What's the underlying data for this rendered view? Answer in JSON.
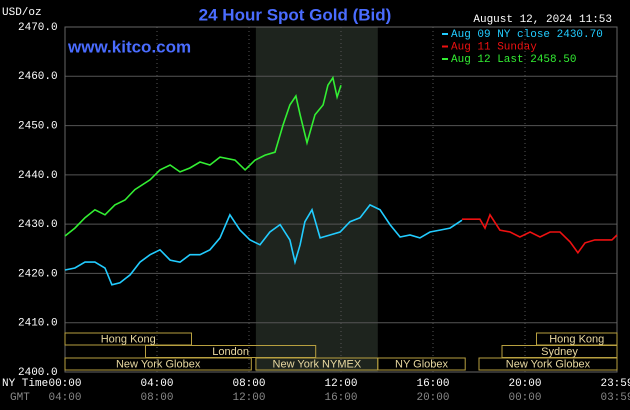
{
  "chart_data": {
    "type": "line",
    "title": "24 Hour Spot Gold (Bid)",
    "unit_label": "USD/oz",
    "timestamp": "August 12, 2024 11:53",
    "watermark": "www.kitco.com",
    "x_axis_label": "NY Time",
    "x2_axis_label": "GMT",
    "xlim": [
      0,
      24
    ],
    "xticks": [
      {
        "value": 0,
        "label": "00:00"
      },
      {
        "value": 4,
        "label": "04:00"
      },
      {
        "value": 8,
        "label": "08:00"
      },
      {
        "value": 12,
        "label": "12:00"
      },
      {
        "value": 16,
        "label": "16:00"
      },
      {
        "value": 20,
        "label": "20:00"
      },
      {
        "value": 24,
        "label": "23:59"
      }
    ],
    "x2tick_labels": [
      "04:00",
      "08:00",
      "12:00",
      "16:00",
      "20:00",
      "00:00",
      "03:59"
    ],
    "ylim": [
      2400,
      2470
    ],
    "yticks": [
      {
        "value": 2400,
        "label": "2400.0"
      },
      {
        "value": 2410,
        "label": "2410.0"
      },
      {
        "value": 2420,
        "label": "2420.0"
      },
      {
        "value": 2430,
        "label": "2430.0"
      },
      {
        "value": 2440,
        "label": "2440.0"
      },
      {
        "value": 2450,
        "label": "2450.0"
      },
      {
        "value": 2460,
        "label": "2460.0"
      },
      {
        "value": 2470,
        "label": "2470.0"
      }
    ],
    "grid": true,
    "series": [
      {
        "name": "Aug 09 NY close 2430.70",
        "color": "#22ccff",
        "x": [
          0,
          0.43,
          0.87,
          1.3,
          1.74,
          2.04,
          2.39,
          2.83,
          3.26,
          3.7,
          4.13,
          4.57,
          5,
          5.43,
          5.87,
          6.3,
          6.74,
          7.17,
          7.61,
          8.04,
          8.48,
          8.91,
          9.35,
          9.78,
          10,
          10.22,
          10.43,
          10.74,
          11.09,
          11.52,
          11.96,
          12.39,
          12.83,
          13.26,
          13.7,
          14.13,
          14.57,
          15,
          15.43,
          15.87,
          16.3,
          16.74,
          17.26
        ],
        "values": [
          2420.7,
          2421.1,
          2422.3,
          2422.3,
          2421.1,
          2417.7,
          2418.1,
          2419.7,
          2422.3,
          2423.8,
          2424.8,
          2422.7,
          2422.3,
          2423.8,
          2423.8,
          2424.8,
          2427.2,
          2431.9,
          2428.8,
          2426.8,
          2425.8,
          2428.4,
          2429.9,
          2426.8,
          2422.3,
          2425.8,
          2430.5,
          2432.9,
          2427.2,
          2427.8,
          2428.4,
          2430.5,
          2431.3,
          2433.9,
          2432.9,
          2429.9,
          2427.4,
          2427.8,
          2427.2,
          2428.4,
          2428.8,
          2429.2,
          2430.8
        ]
      },
      {
        "name": "Aug 11 Sunday",
        "color": "#ee1111",
        "x": [
          17.26,
          18.04,
          18.26,
          18.48,
          18.91,
          19.35,
          19.78,
          20.22,
          20.65,
          21.09,
          21.52,
          21.96,
          22.3,
          22.61,
          23.04,
          23.48,
          23.78,
          24
        ],
        "values": [
          2431.0,
          2431.0,
          2429.2,
          2431.9,
          2428.8,
          2428.4,
          2427.4,
          2428.4,
          2427.4,
          2428.4,
          2428.4,
          2426.4,
          2424.2,
          2426.2,
          2426.8,
          2426.8,
          2426.8,
          2427.8
        ]
      },
      {
        "name": "Aug 12 Last 2458.50",
        "color": "#33ee33",
        "x": [
          0,
          0.43,
          0.87,
          1.3,
          1.74,
          2.17,
          2.61,
          3.04,
          3.7,
          4.13,
          4.57,
          5,
          5.43,
          5.87,
          6.3,
          6.74,
          7.39,
          7.83,
          8.26,
          8.7,
          9.13,
          9.48,
          9.78,
          10.04,
          10.22,
          10.52,
          10.87,
          11.22,
          11.43,
          11.65,
          11.83,
          12
        ],
        "values": [
          2427.6,
          2429.2,
          2431.3,
          2432.9,
          2431.9,
          2433.9,
          2434.9,
          2437.0,
          2439.0,
          2441.0,
          2442.0,
          2440.6,
          2441.4,
          2442.6,
          2442.0,
          2443.6,
          2443.0,
          2441.0,
          2443.0,
          2444.0,
          2444.6,
          2450.1,
          2454.2,
          2456.0,
          2452.2,
          2446.5,
          2452.2,
          2454.2,
          2458.2,
          2459.7,
          2455.8,
          2458.2
        ]
      }
    ],
    "sessions": [
      {
        "label": "New York Globex",
        "start": 0,
        "end": 8.1
      },
      {
        "label": "New York NYMEX",
        "start": 8.3,
        "end": 13.6,
        "highlight": true
      },
      {
        "label": "NY Globex",
        "start": 13.6,
        "end": 17.4
      },
      {
        "label": "New York Globex",
        "start": 18,
        "end": 24
      },
      {
        "label": "London",
        "start": 3.5,
        "end": 10.9
      },
      {
        "label": "Sydney",
        "start": 19,
        "end": 24
      },
      {
        "label": "Hong Kong",
        "start": 0,
        "end": 5.5
      },
      {
        "label": "Hong Kong",
        "start": 20.5,
        "end": 24
      }
    ]
  }
}
